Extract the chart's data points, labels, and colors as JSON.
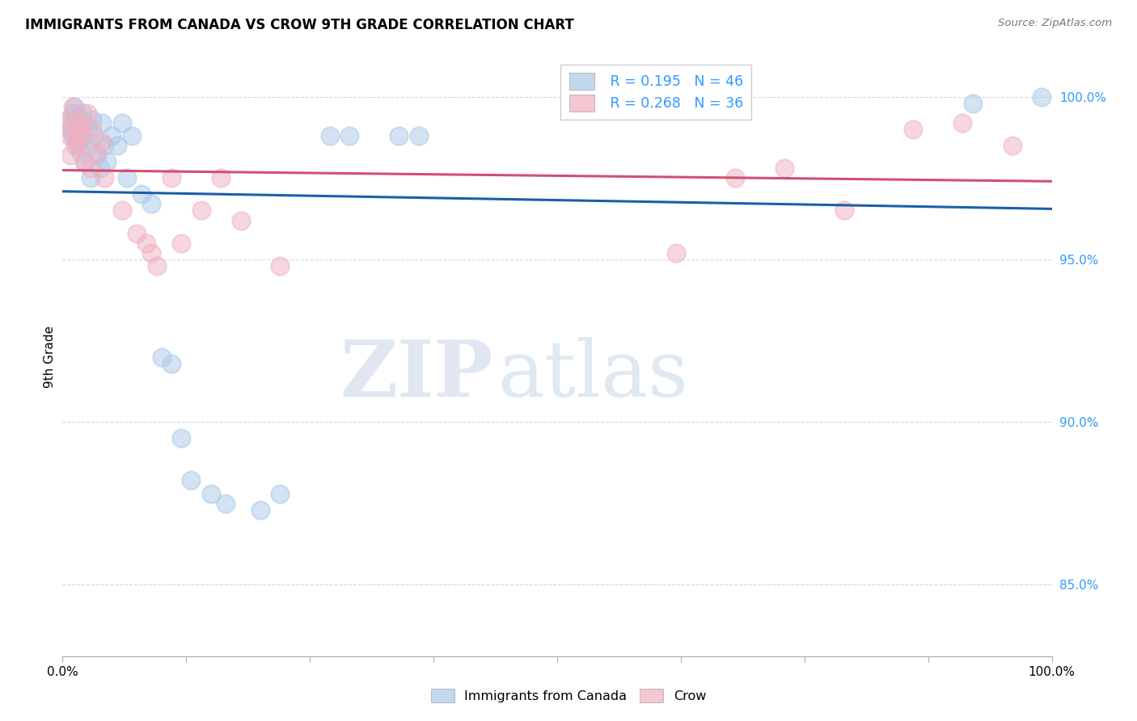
{
  "title": "IMMIGRANTS FROM CANADA VS CROW 9TH GRADE CORRELATION CHART",
  "source": "Source: ZipAtlas.com",
  "ylabel": "9th Grade",
  "yticks": [
    0.85,
    0.9,
    0.95,
    1.0
  ],
  "ytick_labels": [
    "85.0%",
    "90.0%",
    "95.0%",
    "100.0%"
  ],
  "xlim": [
    0.0,
    1.0
  ],
  "ylim": [
    0.828,
    1.012
  ],
  "legend_r_blue": "R = 0.195",
  "legend_n_blue": "N = 46",
  "legend_r_pink": "R = 0.268",
  "legend_n_pink": "N = 36",
  "legend_label_blue": "Immigrants from Canada",
  "legend_label_pink": "Crow",
  "blue_color": "#a8c8e8",
  "pink_color": "#f0b0c0",
  "trendline_blue": "#1a5fa8",
  "trendline_pink": "#d05070",
  "blue_scatter_x": [
    0.005,
    0.008,
    0.01,
    0.01,
    0.012,
    0.013,
    0.015,
    0.015,
    0.016,
    0.017,
    0.018,
    0.02,
    0.02,
    0.022,
    0.023,
    0.025,
    0.026,
    0.028,
    0.03,
    0.032,
    0.035,
    0.038,
    0.04,
    0.042,
    0.045,
    0.05,
    0.055,
    0.06,
    0.065,
    0.07,
    0.08,
    0.09,
    0.1,
    0.11,
    0.12,
    0.13,
    0.15,
    0.165,
    0.2,
    0.22,
    0.27,
    0.29,
    0.34,
    0.36,
    0.92,
    0.99
  ],
  "blue_scatter_y": [
    0.992,
    0.99,
    0.995,
    0.988,
    0.997,
    0.993,
    0.99,
    0.986,
    0.994,
    0.988,
    0.983,
    0.995,
    0.987,
    0.992,
    0.98,
    0.99,
    0.985,
    0.975,
    0.993,
    0.988,
    0.982,
    0.978,
    0.992,
    0.985,
    0.98,
    0.988,
    0.985,
    0.992,
    0.975,
    0.988,
    0.97,
    0.967,
    0.92,
    0.918,
    0.895,
    0.882,
    0.878,
    0.875,
    0.873,
    0.878,
    0.988,
    0.988,
    0.988,
    0.988,
    0.998,
    1.0
  ],
  "pink_scatter_x": [
    0.005,
    0.007,
    0.008,
    0.01,
    0.01,
    0.012,
    0.013,
    0.015,
    0.016,
    0.018,
    0.02,
    0.022,
    0.025,
    0.028,
    0.03,
    0.035,
    0.04,
    0.042,
    0.06,
    0.075,
    0.085,
    0.09,
    0.095,
    0.11,
    0.12,
    0.14,
    0.16,
    0.18,
    0.22,
    0.62,
    0.68,
    0.73,
    0.79,
    0.86,
    0.91,
    0.96
  ],
  "pink_scatter_y": [
    0.993,
    0.988,
    0.982,
    0.997,
    0.992,
    0.988,
    0.985,
    0.99,
    0.985,
    0.992,
    0.988,
    0.98,
    0.995,
    0.978,
    0.99,
    0.983,
    0.986,
    0.975,
    0.965,
    0.958,
    0.955,
    0.952,
    0.948,
    0.975,
    0.955,
    0.965,
    0.975,
    0.962,
    0.948,
    0.952,
    0.975,
    0.978,
    0.965,
    0.99,
    0.992,
    0.985
  ],
  "watermark_zip": "ZIP",
  "watermark_atlas": "atlas",
  "background_color": "#ffffff",
  "grid_color": "#d8d8d8"
}
